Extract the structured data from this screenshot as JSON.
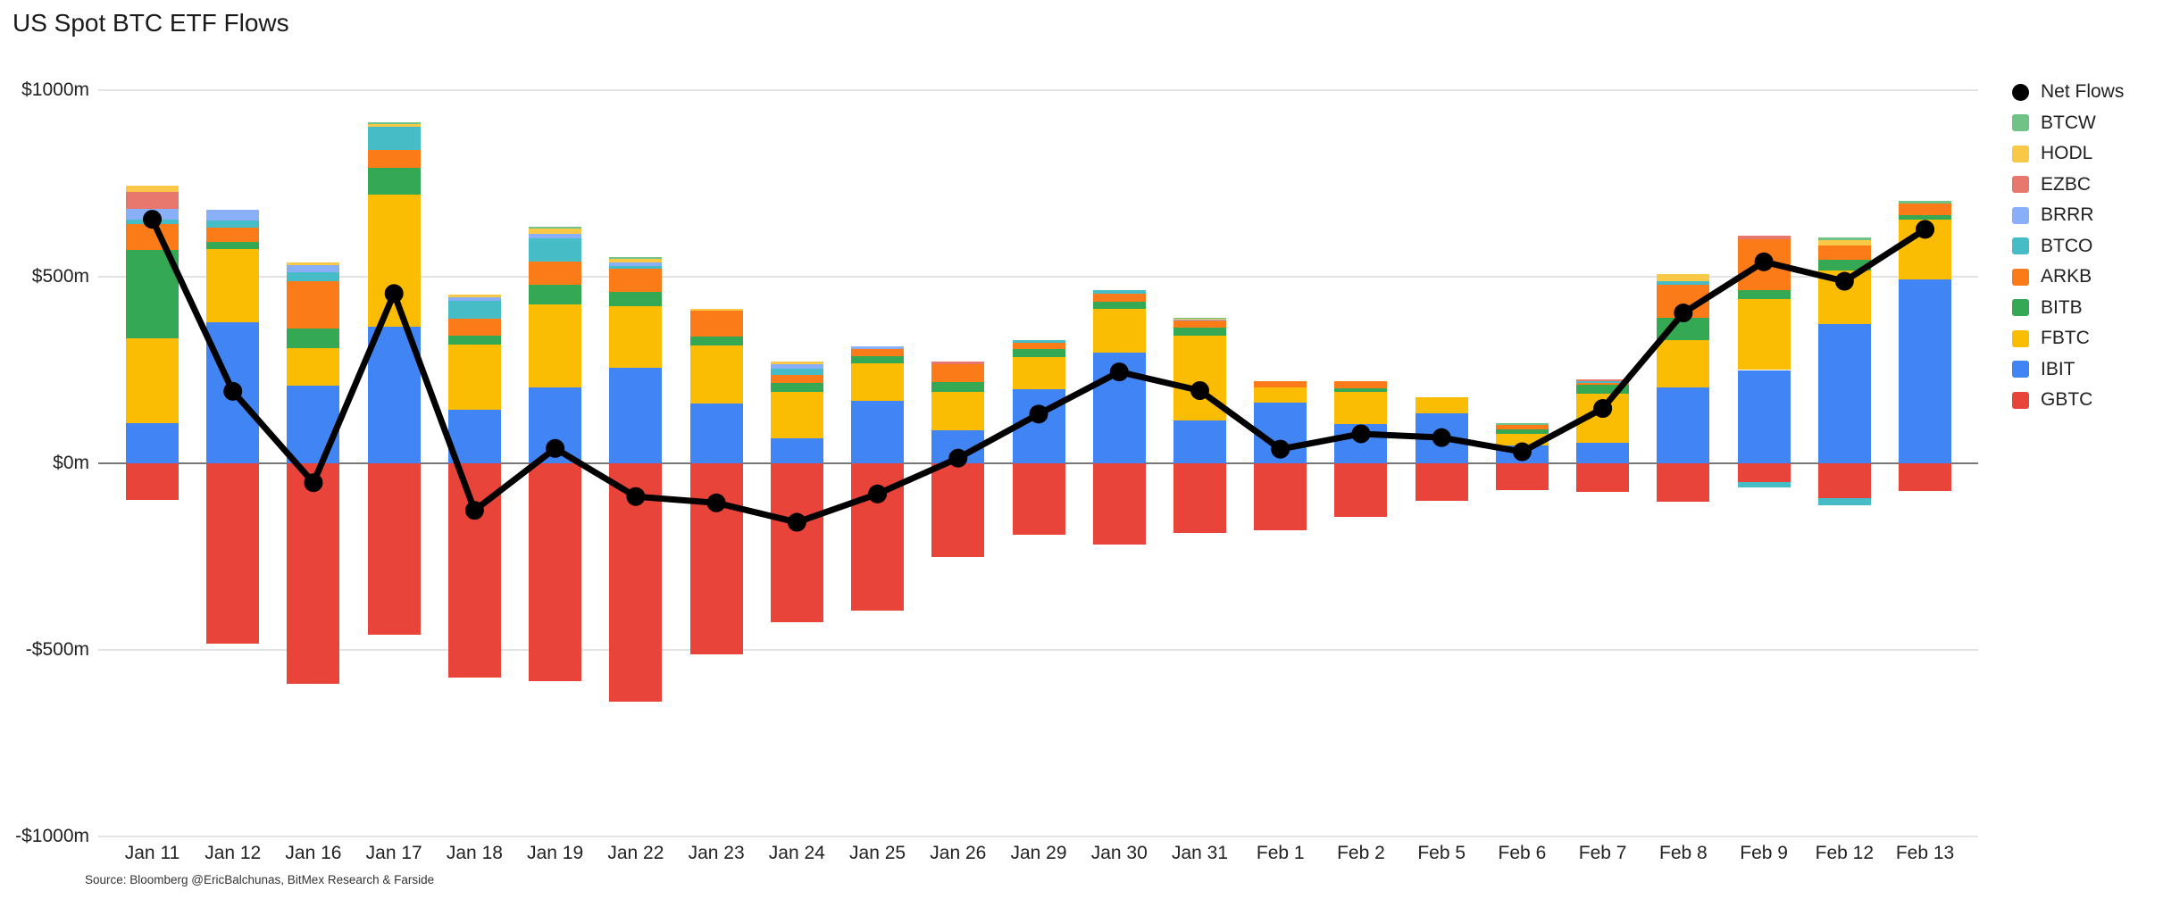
{
  "page": {
    "title": "US Spot BTC ETF Flows",
    "source": "Source: Bloomberg @EricBalchunas, BitMex Research & Farside"
  },
  "chart_data": {
    "type": "bar",
    "subtype": "stacked-bar-with-line",
    "title": "US Spot BTC ETF Flows",
    "xlabel": "",
    "ylabel": "",
    "ylim": [
      -1000,
      1000
    ],
    "grid": "horizontal",
    "legend_position": "right",
    "y_ticks": [
      {
        "label": "$1000m",
        "value": 1000
      },
      {
        "label": "$500m",
        "value": 500
      },
      {
        "label": "$0m",
        "value": 0
      },
      {
        "label": "-$500m",
        "value": -500
      },
      {
        "label": "-$1000m",
        "value": -1000
      }
    ],
    "categories": [
      "Jan 11",
      "Jan 12",
      "Jan 16",
      "Jan 17",
      "Jan 18",
      "Jan 19",
      "Jan 22",
      "Jan 23",
      "Jan 24",
      "Jan 25",
      "Jan 26",
      "Jan 29",
      "Jan 30",
      "Jan 31",
      "Feb 1",
      "Feb 2",
      "Feb 5",
      "Feb 6",
      "Feb 7",
      "Feb 8",
      "Feb 9",
      "Feb 12",
      "Feb 13"
    ],
    "series": [
      {
        "name": "GBTC",
        "color": "#e8443a",
        "values": [
          -97,
          -484,
          -590,
          -459,
          -575,
          -584,
          -639,
          -511,
          -425,
          -395,
          -252,
          -192,
          -218,
          -186,
          -180,
          -143,
          -100,
          -72,
          -76,
          -102,
          -51,
          -93,
          -75
        ]
      },
      {
        "name": "IBIT",
        "color": "#4184f3",
        "values": [
          108,
          378,
          208,
          367,
          143,
          203,
          257,
          161,
          68,
          167,
          88,
          199,
          297,
          116,
          162,
          106,
          135,
          48,
          54,
          203,
          250,
          373,
          493
        ]
      },
      {
        "name": "FBTC",
        "color": "#fbbc04",
        "values": [
          227,
          196,
          101,
          352,
          174,
          222,
          165,
          154,
          123,
          100,
          104,
          86,
          117,
          227,
          42,
          85,
          41,
          32,
          133,
          126,
          189,
          144,
          159
        ]
      },
      {
        "name": "BITB",
        "color": "#34a853",
        "values": [
          237,
          19,
          52,
          72,
          24,
          54,
          38,
          25,
          24,
          19,
          26,
          22,
          18,
          21,
          0,
          10,
          0,
          10,
          24,
          60,
          26,
          29,
          12
        ]
      },
      {
        "name": "ARKB",
        "color": "#fa7b17",
        "values": [
          68,
          38,
          126,
          49,
          46,
          62,
          62,
          68,
          22,
          21,
          48,
          16,
          22,
          18,
          16,
          20,
          0,
          12,
          5,
          89,
          136,
          38,
          33
        ]
      },
      {
        "name": "BTCO",
        "color": "#46bdc6",
        "values": [
          14,
          20,
          26,
          63,
          49,
          62,
          6,
          0,
          17,
          0,
          0,
          6,
          10,
          0,
          0,
          0,
          0,
          0,
          5,
          10,
          -14,
          -20,
          0
        ]
      },
      {
        "name": "BRRR",
        "color": "#88aff7",
        "values": [
          29,
          29,
          17,
          0,
          10,
          11,
          10,
          0,
          11,
          7,
          0,
          0,
          0,
          3,
          0,
          0,
          0,
          0,
          0,
          0,
          0,
          0,
          0
        ]
      },
      {
        "name": "EZBC",
        "color": "#e8786d",
        "values": [
          44,
          0,
          0,
          0,
          0,
          0,
          0,
          0,
          0,
          0,
          6,
          0,
          0,
          0,
          0,
          0,
          0,
          0,
          4,
          0,
          8,
          0,
          0
        ]
      },
      {
        "name": "HODL",
        "color": "#f8c846",
        "values": [
          16,
          0,
          8,
          5,
          6,
          14,
          10,
          5,
          8,
          0,
          0,
          0,
          0,
          3,
          0,
          0,
          0,
          0,
          0,
          18,
          0,
          14,
          0
        ]
      },
      {
        "name": "BTCW",
        "color": "#71c287",
        "values": [
          0,
          0,
          0,
          5,
          0,
          6,
          4,
          0,
          0,
          0,
          0,
          0,
          0,
          3,
          0,
          0,
          0,
          6,
          0,
          0,
          0,
          8,
          6
        ]
      }
    ],
    "line_series": {
      "name": "Net Flows",
      "color": "#000000",
      "values": [
        654,
        193,
        -52,
        455,
        -126,
        40,
        -89,
        -106,
        -158,
        -82,
        14,
        132,
        245,
        195,
        38,
        79,
        69,
        31,
        147,
        403,
        540,
        488,
        627
      ]
    },
    "legend_order": [
      "Net Flows",
      "BTCW",
      "HODL",
      "EZBC",
      "BRRR",
      "BTCO",
      "ARKB",
      "BITB",
      "FBTC",
      "IBIT",
      "GBTC"
    ]
  },
  "layout_note": ""
}
